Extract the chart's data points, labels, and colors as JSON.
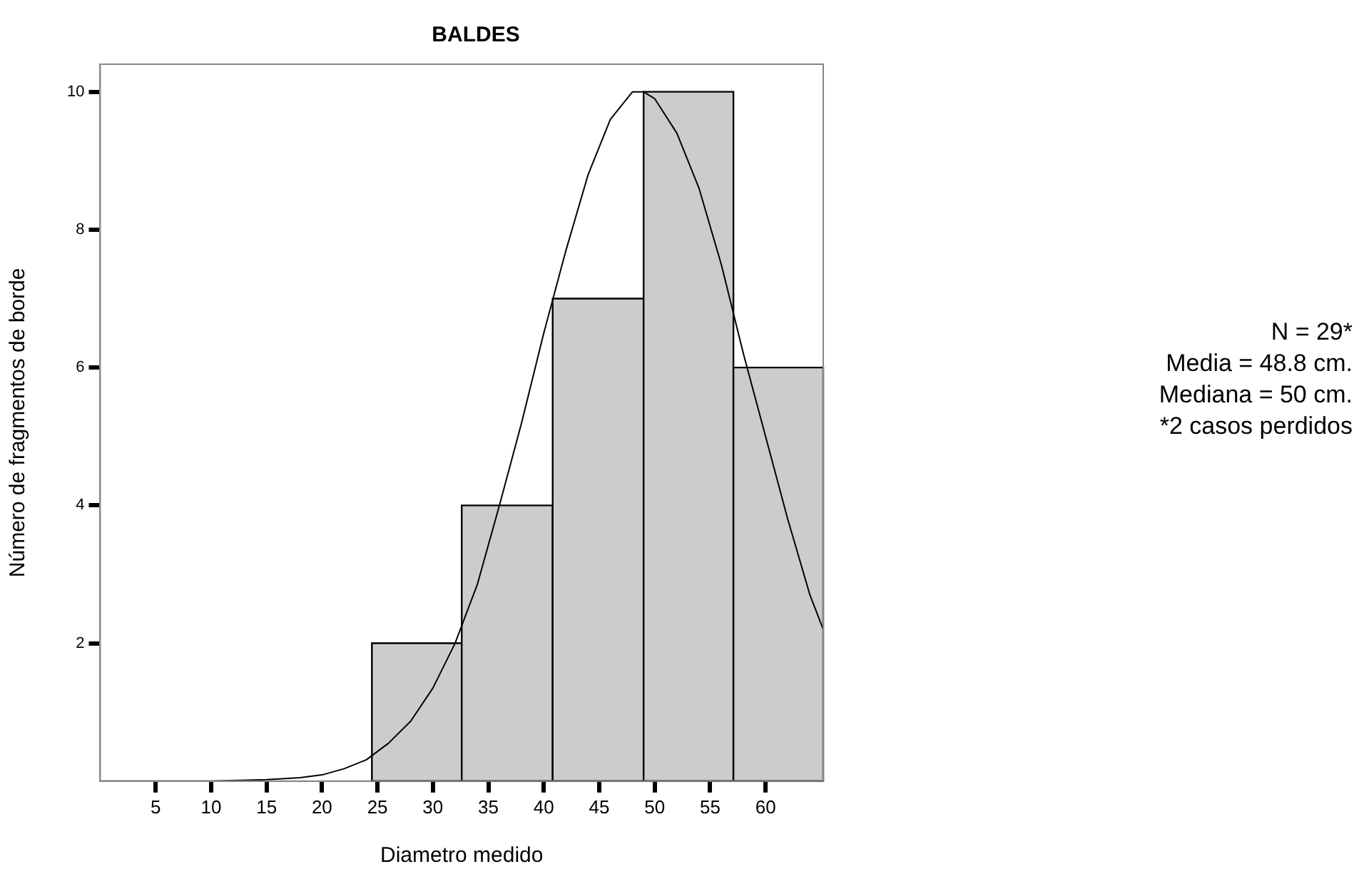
{
  "chart_data": {
    "type": "histogram",
    "title": "BALDES",
    "xlabel": "Diametro medido",
    "ylabel": "Número de fragmentos de borde",
    "bins": [
      24.5,
      32.6,
      40.8,
      49.0,
      57.1,
      65.2
    ],
    "values": [
      2,
      4,
      7,
      10,
      6
    ],
    "color": "#cccccc",
    "series": [
      {
        "type": "line",
        "color": "#000000",
        "x": [
          0,
          10,
          15,
          18,
          20,
          22,
          24,
          26,
          28,
          30,
          32,
          34,
          36,
          38,
          40,
          42,
          44,
          46,
          48,
          49,
          50,
          52,
          54,
          56,
          58,
          60,
          62,
          64,
          65.2
        ],
        "values": [
          0,
          0,
          0.02,
          0.05,
          0.09,
          0.18,
          0.31,
          0.55,
          0.87,
          1.35,
          2.0,
          2.85,
          4.0,
          5.2,
          6.5,
          7.7,
          8.8,
          9.6,
          10,
          10,
          9.9,
          9.4,
          8.6,
          7.5,
          6.2,
          5.0,
          3.8,
          2.7,
          2.2
        ]
      }
    ],
    "xlim": [
      0,
      65.2
    ],
    "xticks": [
      5,
      10,
      15,
      20,
      25,
      30,
      35,
      40,
      45,
      50,
      55,
      60
    ],
    "ylim": [
      0,
      10.4
    ],
    "yticks": [
      2,
      4,
      6,
      8,
      10
    ],
    "grid": false,
    "legend": false,
    "marker": "none",
    "annotations": [
      "N = 29*",
      "Media = 48.8 cm.",
      "Mediana = 50 cm.",
      "*2 casos perdidos"
    ]
  }
}
